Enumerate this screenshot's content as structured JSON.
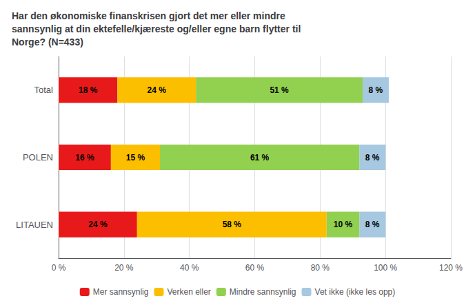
{
  "chart_data": {
    "type": "bar",
    "orientation": "horizontal",
    "stacked": true,
    "title": "Har den økonomiske finanskrisen gjort det mer eller mindre\nsannsynlig at din ektefelle/kjæreste og/eller egne barn flytter til\nNorge? (N=433)",
    "categories": [
      "Total",
      "POLEN",
      "LITAUEN"
    ],
    "series": [
      {
        "name": "Mer sannsynlig",
        "color": "#e8191a",
        "values": [
          18,
          16,
          24
        ],
        "value_labels": [
          "18 %",
          "16 %",
          "24 %"
        ]
      },
      {
        "name": "Verken eller",
        "color": "#fbbf00",
        "values": [
          24,
          15,
          58
        ],
        "value_labels": [
          "24 %",
          "15 %",
          "58 %"
        ]
      },
      {
        "name": "Mindre sannsynlig",
        "color": "#92d050",
        "values": [
          51,
          61,
          10
        ],
        "value_labels": [
          "51 %",
          "61 %",
          "10 %"
        ]
      },
      {
        "name": "Vet ikke (ikke les opp)",
        "color": "#a6c8e0",
        "values": [
          8,
          8,
          8
        ],
        "value_labels": [
          "8 %",
          "8 %",
          "8 %"
        ]
      }
    ],
    "xlim": [
      0,
      120
    ],
    "xticks": [
      {
        "value": 0,
        "label": "0 %"
      },
      {
        "value": 20,
        "label": "20 %"
      },
      {
        "value": 40,
        "label": "40 %"
      },
      {
        "value": 60,
        "label": "60 %"
      },
      {
        "value": 80,
        "label": "80 %"
      },
      {
        "value": 100,
        "label": "100 %"
      },
      {
        "value": 120,
        "label": "120 %"
      }
    ],
    "grid": true,
    "legend": "bottom",
    "data_labels": true
  }
}
